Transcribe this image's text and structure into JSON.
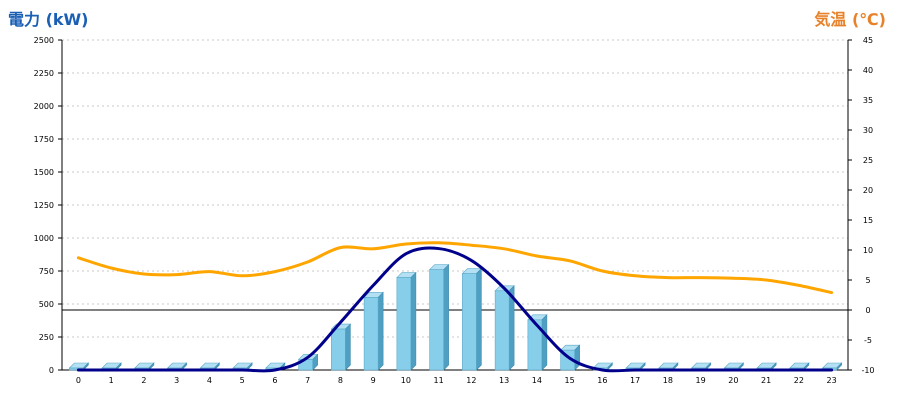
{
  "chart_data": {
    "type": "bar",
    "left_axis_title": "電力 (kW)",
    "right_axis_title": "気温 (℃)",
    "categories": [
      "0",
      "1",
      "2",
      "3",
      "4",
      "5",
      "6",
      "7",
      "8",
      "9",
      "10",
      "11",
      "12",
      "13",
      "14",
      "15",
      "16",
      "17",
      "18",
      "19",
      "20",
      "21",
      "22",
      "23"
    ],
    "left_axis": {
      "ylim": [
        0,
        2500
      ],
      "ticks": [
        "0",
        "250",
        "500",
        "750",
        "1000",
        "1250",
        "1500",
        "1750",
        "2000",
        "2250",
        "2500"
      ]
    },
    "right_axis": {
      "ylim": [
        -10,
        45
      ],
      "ticks": [
        "-10",
        "-5",
        "0",
        "5",
        "10",
        "15",
        "20",
        "25",
        "30",
        "35",
        "40",
        "45"
      ]
    },
    "grid": true,
    "reference_line_right": 0,
    "series": [
      {
        "kind": "bar3d",
        "axis": "left",
        "color": "#87ceeb",
        "values": [
          0,
          0,
          0,
          0,
          0,
          0,
          0,
          80,
          310,
          550,
          700,
          760,
          730,
          600,
          380,
          150,
          0,
          0,
          0,
          0,
          0,
          0,
          0,
          0
        ]
      },
      {
        "kind": "line",
        "axis": "left",
        "color": "#00008b",
        "smooth": true,
        "values": [
          0,
          0,
          0,
          0,
          0,
          0,
          0,
          95,
          360,
          640,
          880,
          920,
          830,
          620,
          340,
          90,
          0,
          0,
          0,
          0,
          0,
          0,
          0,
          0
        ]
      },
      {
        "kind": "line",
        "axis": "right",
        "color": "#ffa500",
        "smooth": true,
        "values": [
          8.7,
          7.0,
          6.0,
          5.9,
          6.4,
          5.7,
          6.4,
          8.0,
          10.4,
          10.2,
          11.0,
          11.2,
          10.8,
          10.2,
          9.0,
          8.2,
          6.5,
          5.7,
          5.4,
          5.4,
          5.3,
          5.0,
          4.1,
          2.9
        ]
      }
    ]
  }
}
